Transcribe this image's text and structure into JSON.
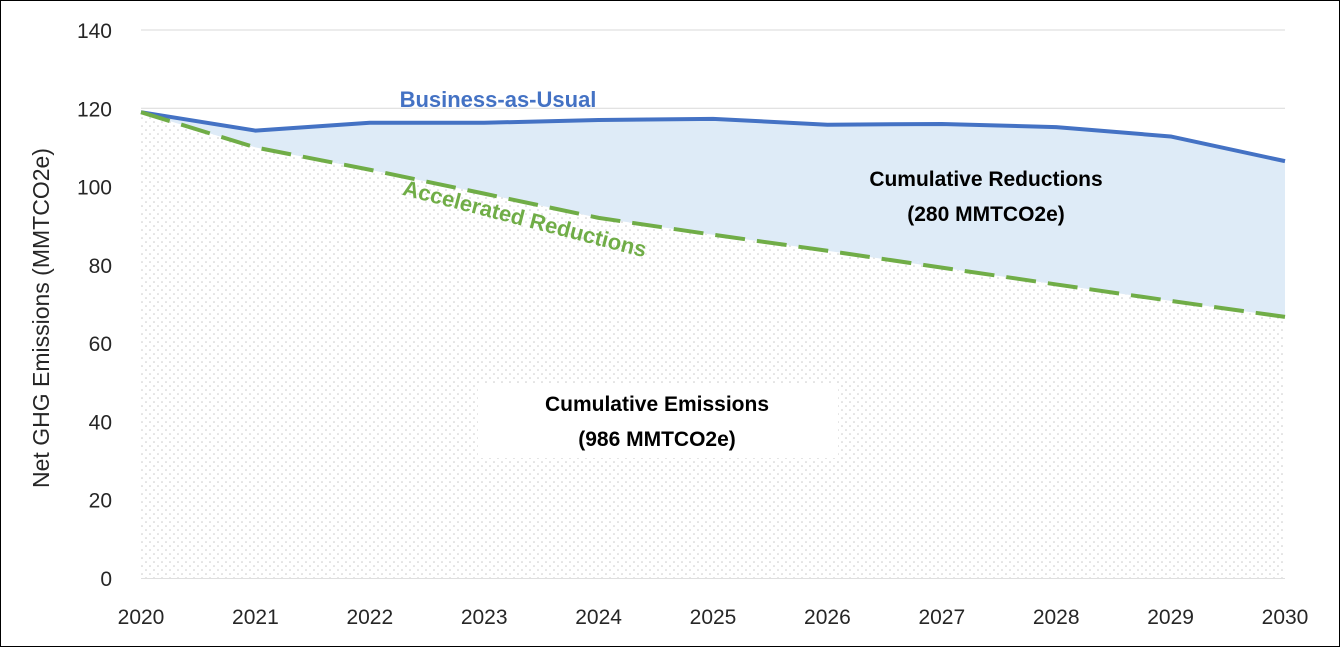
{
  "chart_data": {
    "type": "area",
    "x": [
      2020,
      2021,
      2022,
      2023,
      2024,
      2025,
      2026,
      2027,
      2028,
      2029,
      2030
    ],
    "series": [
      {
        "name": "Business-as-Usual",
        "values": [
          119,
          114.3,
          116.3,
          116.3,
          117,
          117.3,
          115.8,
          116,
          115.2,
          112.8,
          106.5
        ],
        "color": "#4472C4",
        "style": "solid"
      },
      {
        "name": "Accelerated Reductions",
        "values": [
          119,
          110,
          104.3,
          98.2,
          92,
          87.7,
          83.6,
          79.3,
          75,
          70.8,
          66.7
        ],
        "color": "#70AD47",
        "style": "dashed"
      }
    ],
    "fills": {
      "reductions_color": "#DEEBF7",
      "emissions_dot_color": "#C9C9C9"
    },
    "annotations": {
      "reductions_line1": "Cumulative Reductions",
      "reductions_line2": "(280 MMTCO2e)",
      "emissions_line1": "Cumulative Emissions",
      "emissions_line2": "(986 MMTCO2e)"
    },
    "ylabel": "Net GHG Emissions (MMTCO2e)",
    "xlabel": "",
    "ylim": [
      0,
      140
    ],
    "yticks": [
      0,
      20,
      40,
      60,
      80,
      100,
      120,
      140
    ],
    "xticks": [
      2020,
      2021,
      2022,
      2023,
      2024,
      2025,
      2026,
      2027,
      2028,
      2029,
      2030
    ],
    "grid": true
  }
}
